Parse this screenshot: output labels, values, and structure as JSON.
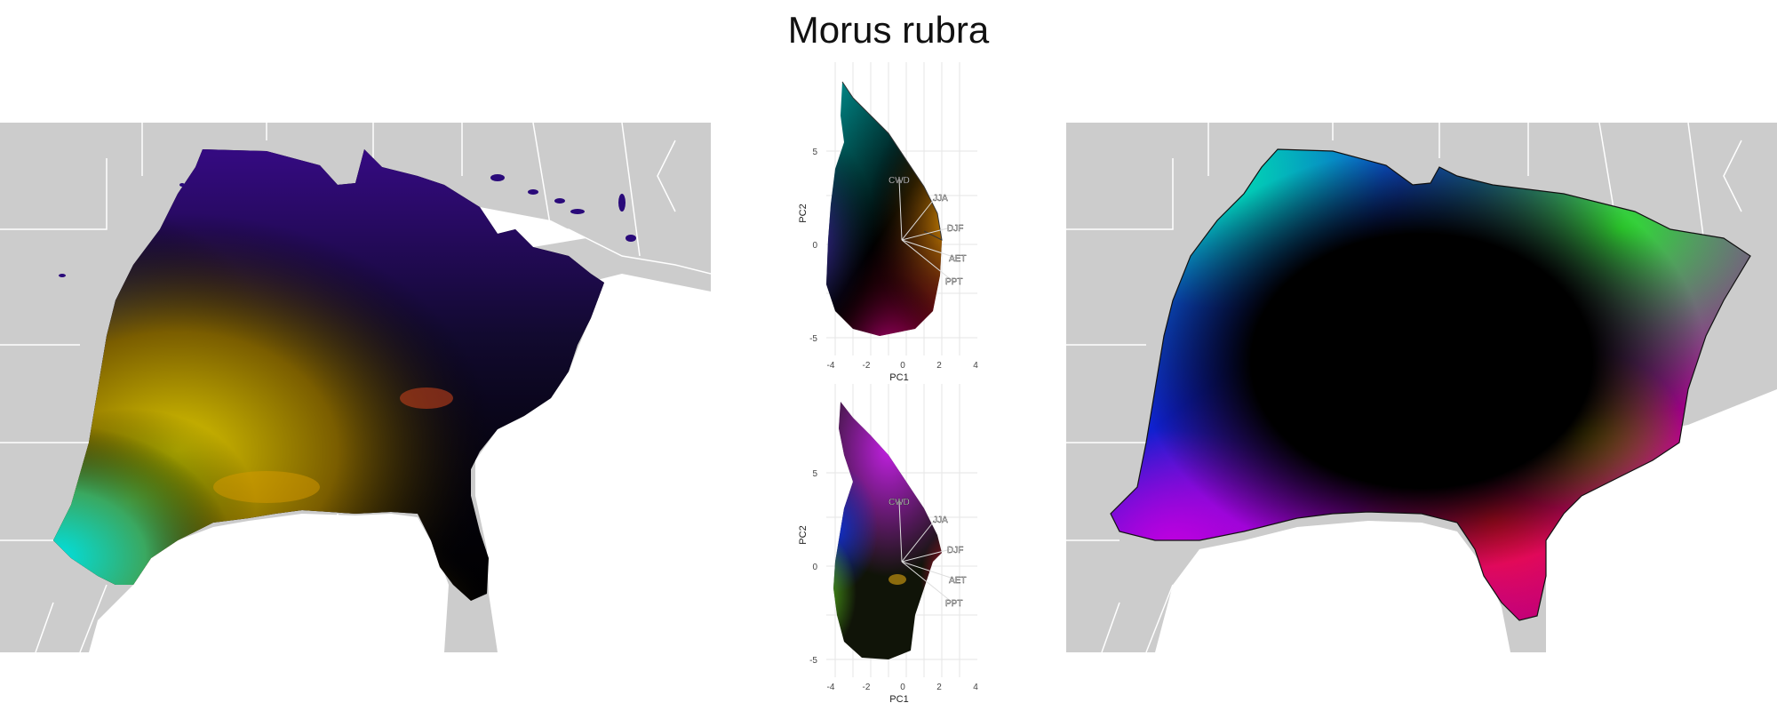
{
  "title": "Morus rubra",
  "pca_panels": [
    {
      "x_ticks": [
        "-4",
        "-2",
        "0",
        "2",
        "4"
      ],
      "y_ticks": [
        "5",
        "0",
        "-5"
      ],
      "xlabel": "PC1",
      "ylabel": "PC2",
      "vectors": [
        "CWD",
        "JJA",
        "DJF",
        "AET",
        "PPT"
      ]
    },
    {
      "x_ticks": [
        "-4",
        "-2",
        "0",
        "2",
        "4"
      ],
      "y_ticks": [
        "5",
        "0",
        "-5"
      ],
      "xlabel": "PC1",
      "ylabel": "PC2",
      "vectors": [
        "CWD",
        "JJA",
        "DJF",
        "AET",
        "PPT"
      ]
    }
  ],
  "colors": {
    "land": "#cccccc",
    "borders": "#ffffff",
    "grid": "#e6e6e6"
  }
}
